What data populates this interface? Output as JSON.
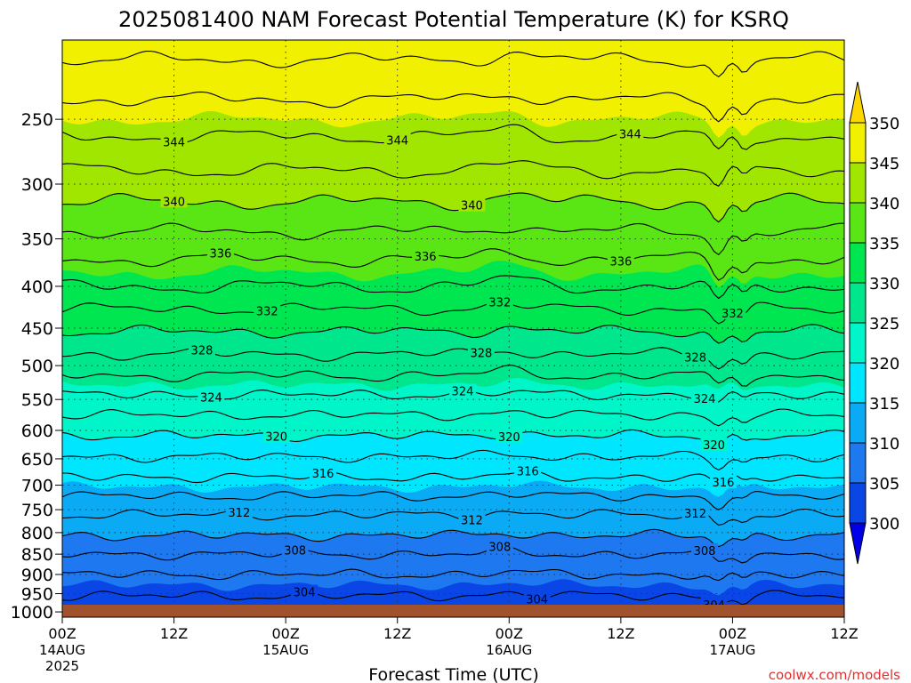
{
  "chart_data": {
    "type": "contour",
    "title": "2025081400 NAM Forecast Potential Temperature (K) for KSRQ",
    "xlabel": "Forecast Time (UTC)",
    "credit": "coolwx.com/models",
    "x_ticks": [
      {
        "hours": 0,
        "label": "00Z",
        "sub1": "14AUG",
        "sub2": "2025"
      },
      {
        "hours": 12,
        "label": "12Z",
        "sub1": "",
        "sub2": ""
      },
      {
        "hours": 24,
        "label": "00Z",
        "sub1": "15AUG",
        "sub2": ""
      },
      {
        "hours": 36,
        "label": "12Z",
        "sub1": "",
        "sub2": ""
      },
      {
        "hours": 48,
        "label": "00Z",
        "sub1": "16AUG",
        "sub2": ""
      },
      {
        "hours": 60,
        "label": "12Z",
        "sub1": "",
        "sub2": ""
      },
      {
        "hours": 72,
        "label": "00Z",
        "sub1": "17AUG",
        "sub2": ""
      },
      {
        "hours": 84,
        "label": "12Z",
        "sub1": "",
        "sub2": ""
      }
    ],
    "xlim_hours": [
      0,
      84
    ],
    "y_scale": "log-pressure",
    "ylim_hPa": [
      1015,
      200
    ],
    "y_ticks": [
      "250",
      "300",
      "350",
      "400",
      "450",
      "500",
      "550",
      "600",
      "650",
      "700",
      "750",
      "800",
      "850",
      "900",
      "950",
      "1000"
    ],
    "grid": true,
    "colorbar": {
      "placement": "right",
      "ticks": [
        "350",
        "345",
        "340",
        "335",
        "330",
        "325",
        "320",
        "315",
        "310",
        "305",
        "300"
      ],
      "bins": [
        {
          "min": 300,
          "max": 305,
          "color": "#0a46e6"
        },
        {
          "min": 305,
          "max": 310,
          "color": "#1e78f0"
        },
        {
          "min": 310,
          "max": 315,
          "color": "#0aaaf5"
        },
        {
          "min": 315,
          "max": 320,
          "color": "#00e6ff"
        },
        {
          "min": 320,
          "max": 325,
          "color": "#00f5c8"
        },
        {
          "min": 325,
          "max": 330,
          "color": "#00e68c"
        },
        {
          "min": 330,
          "max": 335,
          "color": "#00e650"
        },
        {
          "min": 335,
          "max": 340,
          "color": "#5ae614"
        },
        {
          "min": 340,
          "max": 345,
          "color": "#a0e600"
        },
        {
          "min": 345,
          "max": 350,
          "color": "#f0f000"
        },
        {
          "min": 350,
          "max": 999,
          "color": "#ffd700"
        }
      ],
      "under_color": "#0000e6"
    },
    "ground_color": "#a0522d",
    "contour_interval_K": 2,
    "label_sets": [
      {
        "value": 344,
        "label": "344",
        "hours": [
          12,
          36,
          61
        ]
      },
      {
        "value": 340,
        "label": "340",
        "hours": [
          12,
          44
        ]
      },
      {
        "value": 336,
        "label": "336",
        "hours": [
          17,
          39,
          60
        ]
      },
      {
        "value": 332,
        "label": "332",
        "hours": [
          22,
          47,
          72
        ]
      },
      {
        "value": 328,
        "label": "328",
        "hours": [
          15,
          45,
          68
        ]
      },
      {
        "value": 324,
        "label": "324",
        "hours": [
          16,
          43,
          69
        ]
      },
      {
        "value": 320,
        "label": "320",
        "hours": [
          23,
          48,
          70
        ]
      },
      {
        "value": 316,
        "label": "316",
        "hours": [
          28,
          50,
          71
        ]
      },
      {
        "value": 312,
        "label": "312",
        "hours": [
          19,
          44,
          68
        ]
      },
      {
        "value": 308,
        "label": "308",
        "hours": [
          25,
          47,
          69
        ]
      },
      {
        "value": 304,
        "label": "304",
        "hours": [
          26,
          51,
          70
        ]
      }
    ],
    "profile": {
      "pressure_hPa": [
        1000,
        950,
        900,
        850,
        800,
        750,
        700,
        650,
        600,
        550,
        500,
        450,
        400,
        350,
        300,
        250,
        200
      ],
      "theta_K": [
        302.5,
        304.2,
        306.0,
        308.0,
        310.3,
        312.5,
        315.2,
        317.8,
        320.5,
        323.5,
        327.0,
        330.3,
        334.0,
        337.5,
        341.2,
        345.0,
        349.0
      ]
    }
  }
}
